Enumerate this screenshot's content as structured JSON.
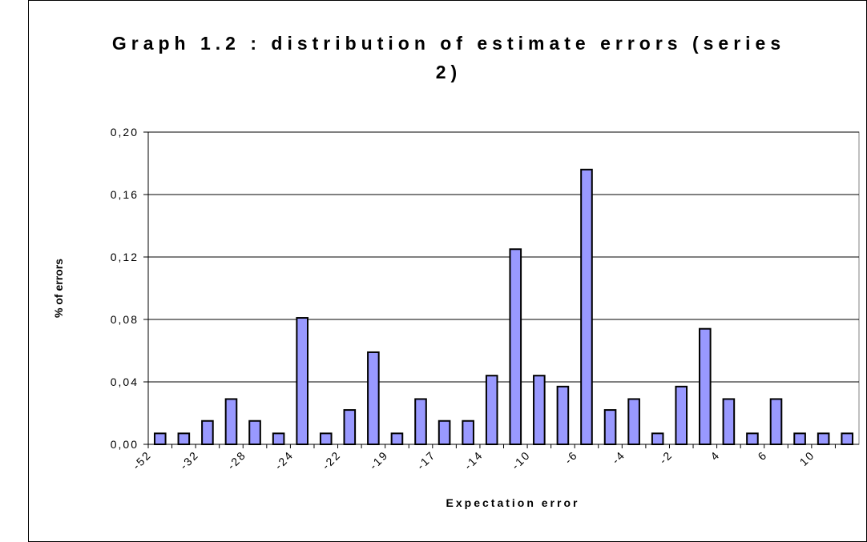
{
  "chart_data": {
    "type": "bar",
    "title": "Graph 1.2 : distribution of estimate errors (series 2)",
    "x_label": "Expectation error",
    "y_label": "% of errors",
    "categories": [
      "-52",
      null,
      "-32",
      null,
      "-28",
      null,
      "-24",
      null,
      "-22",
      null,
      "-19",
      null,
      "-17",
      null,
      "-14",
      null,
      "-10",
      null,
      "-6",
      null,
      "-4",
      null,
      "-2",
      null,
      "4",
      null,
      "6",
      null,
      "10",
      null
    ],
    "values": [
      0.007,
      0.007,
      0.015,
      0.029,
      0.015,
      0.007,
      0.081,
      0.007,
      0.022,
      0.059,
      0.007,
      0.029,
      0.015,
      0.015,
      0.044,
      0.125,
      0.044,
      0.037,
      0.176,
      0.022,
      0.029,
      0.007,
      0.037,
      0.074,
      0.029,
      0.007,
      0.029,
      0.007,
      0.007,
      0.007
    ],
    "color": "#9999ff",
    "ylim": [
      0,
      0.2
    ],
    "yticks": [
      {
        "value": 0,
        "label": "0,00"
      },
      {
        "value": 0.04,
        "label": "0,04"
      },
      {
        "value": 0.08,
        "label": "0,08"
      },
      {
        "value": 0.12,
        "label": "0,12"
      },
      {
        "value": 0.16,
        "label": "0,16"
      },
      {
        "value": 0.2,
        "label": "0,20"
      }
    ],
    "grid": true
  }
}
